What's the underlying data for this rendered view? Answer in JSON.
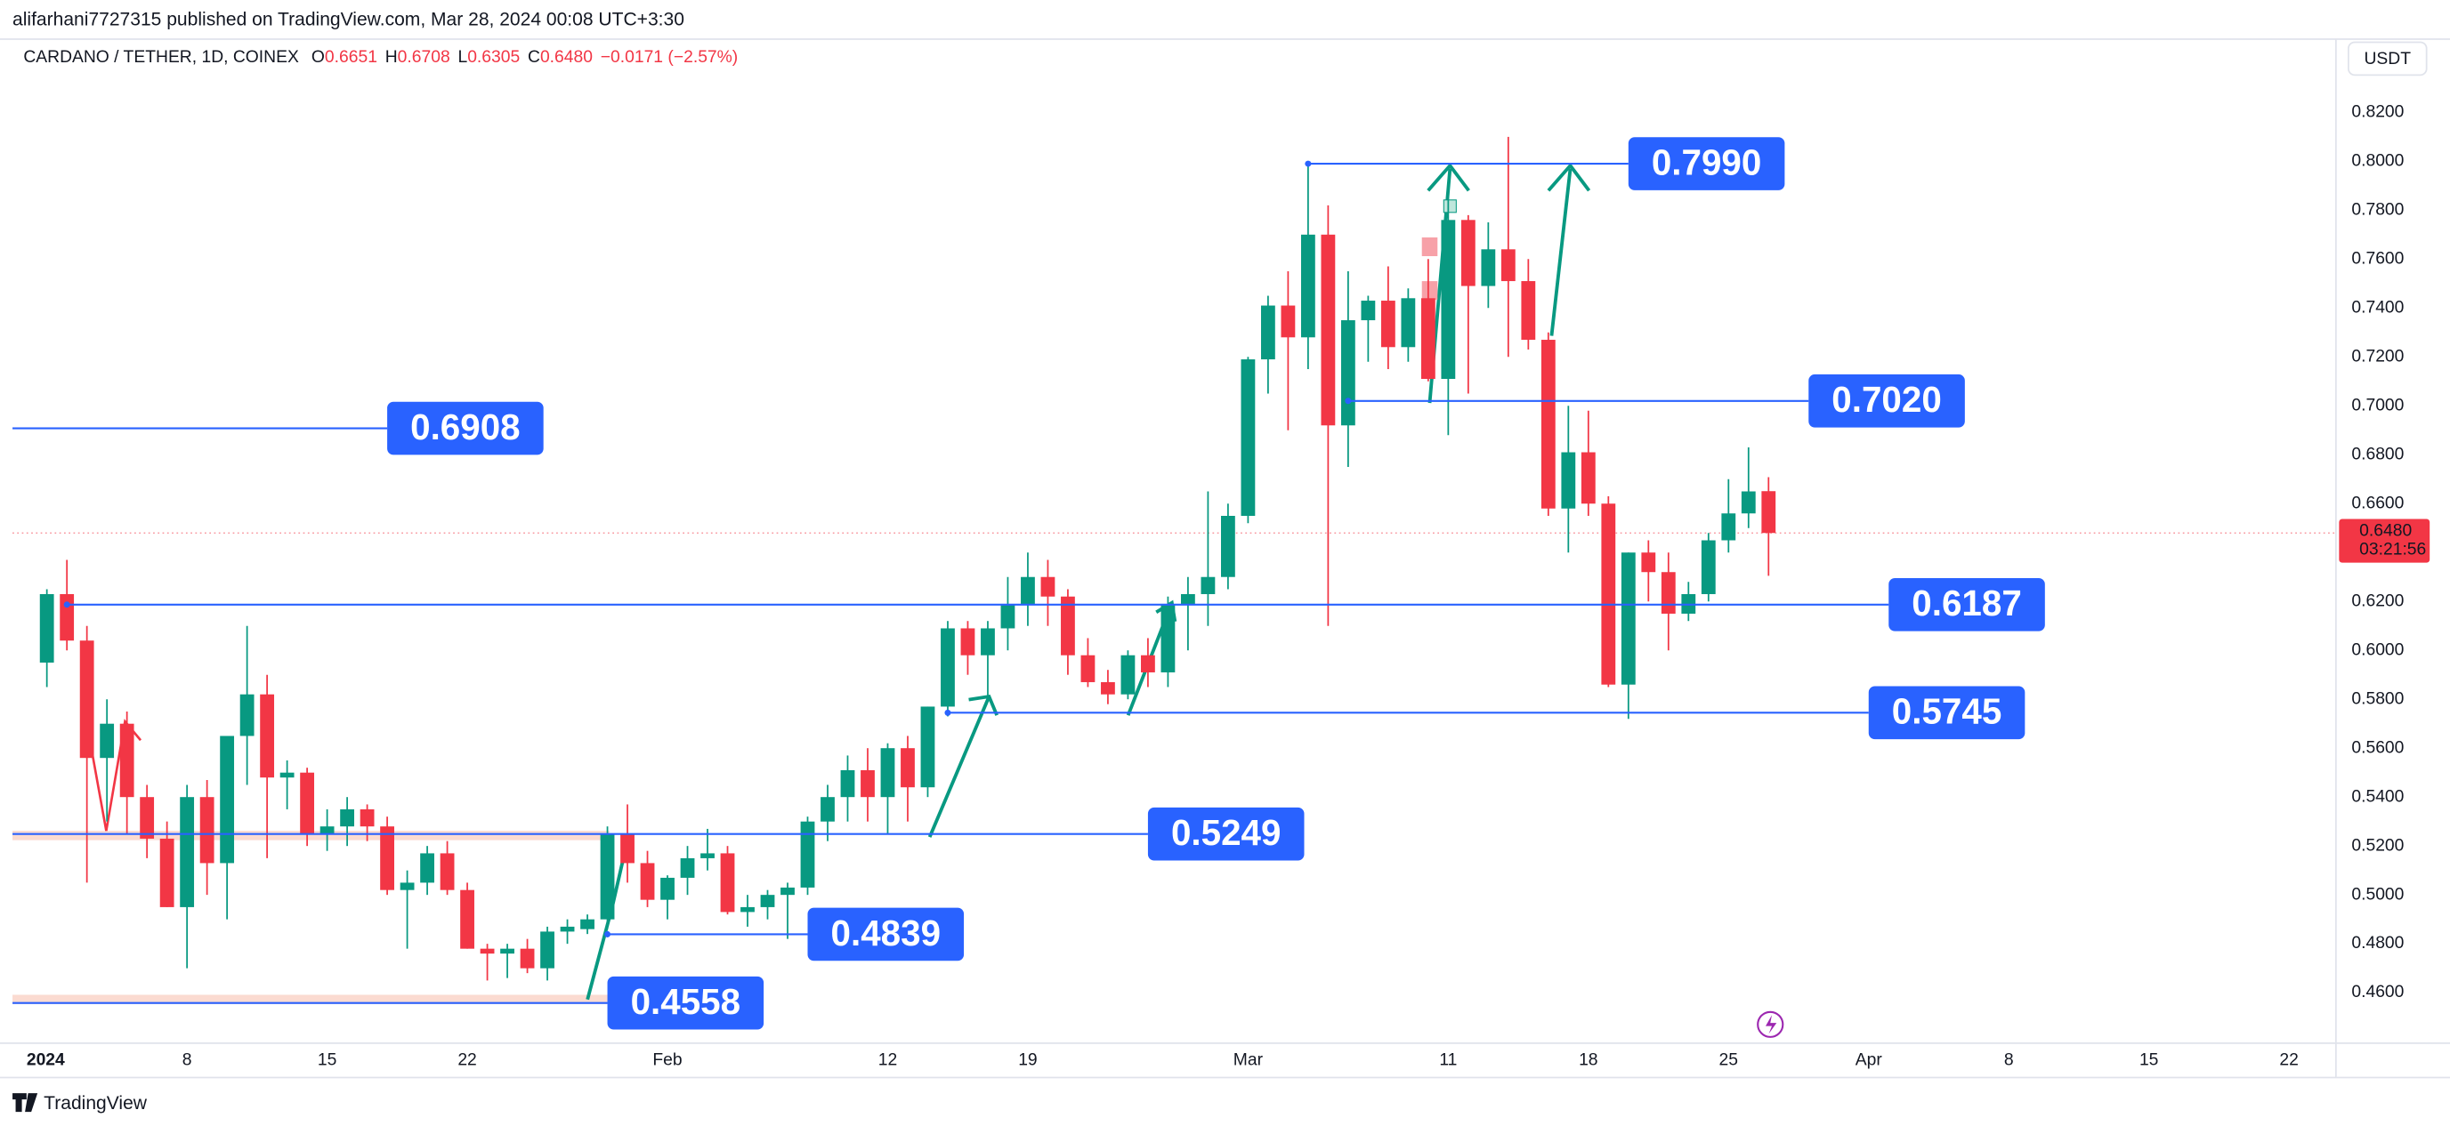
{
  "chart_data": {
    "type": "candlestick",
    "header": "alifarhani7727315 published on TradingView.com, Mar 28, 2024 00:08 UTC+3:30",
    "title": "CARDANO / TETHER, 1D, COINEX",
    "ohlc_legend": [
      {
        "key": "O",
        "value": "0.6651"
      },
      {
        "key": "H",
        "value": "0.6708"
      },
      {
        "key": "L",
        "value": "0.6305"
      },
      {
        "key": "C",
        "value": "0.6480"
      }
    ],
    "change": "−0.0171 (−2.57%)",
    "currency": "USDT",
    "brand": "TradingView",
    "up_color": "#089981",
    "down_color": "#f23645",
    "level_color": "#2962ff",
    "x": [
      "2024-01-01",
      "2024-01-02",
      "2024-01-03",
      "2024-01-04",
      "2024-01-05",
      "2024-01-06",
      "2024-01-07",
      "2024-01-08",
      "2024-01-09",
      "2024-01-10",
      "2024-01-11",
      "2024-01-12",
      "2024-01-13",
      "2024-01-14",
      "2024-01-15",
      "2024-01-16",
      "2024-01-17",
      "2024-01-18",
      "2024-01-19",
      "2024-01-20",
      "2024-01-21",
      "2024-01-22",
      "2024-01-23",
      "2024-01-24",
      "2024-01-25",
      "2024-01-26",
      "2024-01-27",
      "2024-01-28",
      "2024-01-29",
      "2024-01-30",
      "2024-01-31",
      "2024-02-01",
      "2024-02-02",
      "2024-02-03",
      "2024-02-04",
      "2024-02-05",
      "2024-02-06",
      "2024-02-07",
      "2024-02-08",
      "2024-02-09",
      "2024-02-10",
      "2024-02-11",
      "2024-02-12",
      "2024-02-13",
      "2024-02-14",
      "2024-02-15",
      "2024-02-16",
      "2024-02-17",
      "2024-02-18",
      "2024-02-19",
      "2024-02-20",
      "2024-02-21",
      "2024-02-22",
      "2024-02-23",
      "2024-02-24",
      "2024-02-25",
      "2024-02-26",
      "2024-02-27",
      "2024-02-28",
      "2024-02-29",
      "2024-03-01",
      "2024-03-02",
      "2024-03-03",
      "2024-03-04",
      "2024-03-05",
      "2024-03-06",
      "2024-03-07",
      "2024-03-08",
      "2024-03-09",
      "2024-03-10",
      "2024-03-11",
      "2024-03-12",
      "2024-03-13",
      "2024-03-14",
      "2024-03-15",
      "2024-03-16",
      "2024-03-17",
      "2024-03-18",
      "2024-03-19",
      "2024-03-20",
      "2024-03-21",
      "2024-03-22",
      "2024-03-23",
      "2024-03-24",
      "2024-03-25",
      "2024-03-26",
      "2024-03-27"
    ],
    "open": [
      0.595,
      0.623,
      0.604,
      0.556,
      0.57,
      0.54,
      0.523,
      0.495,
      0.54,
      0.513,
      0.565,
      0.582,
      0.548,
      0.55,
      0.525,
      0.528,
      0.535,
      0.528,
      0.502,
      0.505,
      0.517,
      0.502,
      0.478,
      0.476,
      0.478,
      0.47,
      0.485,
      0.486,
      0.49,
      0.525,
      0.513,
      0.498,
      0.507,
      0.515,
      0.517,
      0.493,
      0.495,
      0.5,
      0.503,
      0.53,
      0.54,
      0.551,
      0.54,
      0.56,
      0.544,
      0.577,
      0.609,
      0.598,
      0.609,
      0.619,
      0.63,
      0.622,
      0.598,
      0.587,
      0.582,
      0.598,
      0.591,
      0.619,
      0.623,
      0.63,
      0.655,
      0.719,
      0.741,
      0.728,
      0.77,
      0.692,
      0.735,
      0.743,
      0.724,
      0.744,
      0.711,
      0.776,
      0.749,
      0.764,
      0.751,
      0.727,
      0.658,
      0.681,
      0.66,
      0.586,
      0.64,
      0.632,
      0.615,
      0.623,
      0.645,
      0.656,
      0.6651
    ],
    "high": [
      0.625,
      0.637,
      0.61,
      0.58,
      0.575,
      0.545,
      0.53,
      0.545,
      0.547,
      0.565,
      0.61,
      0.59,
      0.555,
      0.552,
      0.535,
      0.54,
      0.537,
      0.532,
      0.51,
      0.52,
      0.522,
      0.505,
      0.48,
      0.48,
      0.482,
      0.487,
      0.49,
      0.492,
      0.528,
      0.537,
      0.518,
      0.508,
      0.52,
      0.527,
      0.52,
      0.5,
      0.502,
      0.505,
      0.532,
      0.545,
      0.557,
      0.56,
      0.562,
      0.565,
      0.577,
      0.612,
      0.612,
      0.612,
      0.63,
      0.64,
      0.637,
      0.625,
      0.605,
      0.592,
      0.6,
      0.605,
      0.622,
      0.63,
      0.665,
      0.66,
      0.72,
      0.745,
      0.755,
      0.8,
      0.782,
      0.755,
      0.745,
      0.757,
      0.748,
      0.76,
      0.79,
      0.778,
      0.775,
      0.81,
      0.76,
      0.73,
      0.7,
      0.698,
      0.663,
      0.64,
      0.645,
      0.64,
      0.628,
      0.648,
      0.67,
      0.683,
      0.6708
    ],
    "low": [
      0.585,
      0.6,
      0.505,
      0.53,
      0.525,
      0.515,
      0.495,
      0.47,
      0.5,
      0.49,
      0.545,
      0.515,
      0.535,
      0.52,
      0.518,
      0.52,
      0.522,
      0.5,
      0.478,
      0.5,
      0.5,
      0.478,
      0.465,
      0.466,
      0.468,
      0.465,
      0.48,
      0.484,
      0.486,
      0.505,
      0.495,
      0.49,
      0.5,
      0.51,
      0.492,
      0.487,
      0.49,
      0.482,
      0.5,
      0.522,
      0.53,
      0.53,
      0.525,
      0.53,
      0.54,
      0.573,
      0.59,
      0.58,
      0.6,
      0.61,
      0.61,
      0.59,
      0.585,
      0.578,
      0.58,
      0.585,
      0.585,
      0.6,
      0.61,
      0.625,
      0.652,
      0.705,
      0.69,
      0.715,
      0.61,
      0.675,
      0.718,
      0.715,
      0.718,
      0.71,
      0.688,
      0.705,
      0.74,
      0.72,
      0.723,
      0.655,
      0.64,
      0.655,
      0.585,
      0.572,
      0.62,
      0.6,
      0.612,
      0.62,
      0.64,
      0.65,
      0.6305
    ],
    "close": [
      0.623,
      0.604,
      0.556,
      0.57,
      0.54,
      0.523,
      0.495,
      0.54,
      0.513,
      0.565,
      0.582,
      0.548,
      0.55,
      0.525,
      0.528,
      0.535,
      0.528,
      0.502,
      0.505,
      0.517,
      0.502,
      0.478,
      0.476,
      0.478,
      0.47,
      0.485,
      0.487,
      0.49,
      0.525,
      0.513,
      0.498,
      0.507,
      0.515,
      0.517,
      0.493,
      0.495,
      0.5,
      0.503,
      0.53,
      0.54,
      0.551,
      0.54,
      0.56,
      0.544,
      0.577,
      0.609,
      0.598,
      0.609,
      0.619,
      0.63,
      0.622,
      0.598,
      0.587,
      0.582,
      0.598,
      0.591,
      0.619,
      0.623,
      0.63,
      0.655,
      0.719,
      0.741,
      0.728,
      0.77,
      0.692,
      0.735,
      0.743,
      0.724,
      0.744,
      0.711,
      0.776,
      0.749,
      0.764,
      0.751,
      0.727,
      0.658,
      0.681,
      0.66,
      0.586,
      0.64,
      0.632,
      0.615,
      0.623,
      0.645,
      0.656,
      0.665,
      0.648
    ],
    "ylim": [
      0.44,
      0.834
    ],
    "yticks": [
      {
        "value": 0.46,
        "label": "0.4600"
      },
      {
        "value": 0.48,
        "label": "0.4800"
      },
      {
        "value": 0.5,
        "label": "0.5000"
      },
      {
        "value": 0.52,
        "label": "0.5200"
      },
      {
        "value": 0.54,
        "label": "0.5400"
      },
      {
        "value": 0.56,
        "label": "0.5600"
      },
      {
        "value": 0.58,
        "label": "0.5800"
      },
      {
        "value": 0.6,
        "label": "0.6000"
      },
      {
        "value": 0.62,
        "label": "0.6200"
      },
      {
        "value": 0.64,
        "label": "0.6400"
      },
      {
        "value": 0.66,
        "label": "0.6600"
      },
      {
        "value": 0.68,
        "label": "0.6800"
      },
      {
        "value": 0.7,
        "label": "0.7000"
      },
      {
        "value": 0.72,
        "label": "0.7200"
      },
      {
        "value": 0.74,
        "label": "0.7400"
      },
      {
        "value": 0.76,
        "label": "0.7600"
      },
      {
        "value": 0.78,
        "label": "0.7800"
      },
      {
        "value": 0.8,
        "label": "0.8000"
      },
      {
        "value": 0.82,
        "label": "0.8200"
      }
    ],
    "xticks": [
      {
        "value": "2024-01-01",
        "label": "2024"
      },
      {
        "value": "2024-01-08",
        "label": "8"
      },
      {
        "value": "2024-01-15",
        "label": "15"
      },
      {
        "value": "2024-01-22",
        "label": "22"
      },
      {
        "value": "2024-02-01",
        "label": "Feb"
      },
      {
        "value": "2024-02-12",
        "label": "12"
      },
      {
        "value": "2024-02-19",
        "label": "19"
      },
      {
        "value": "2024-03-01",
        "label": "Mar"
      },
      {
        "value": "2024-03-11",
        "label": "11"
      },
      {
        "value": "2024-03-18",
        "label": "18"
      },
      {
        "value": "2024-03-25",
        "label": "25"
      },
      {
        "value": "2024-04-01",
        "label": "Apr"
      },
      {
        "value": "2024-04-08",
        "label": "8"
      },
      {
        "value": "2024-04-15",
        "label": "15"
      },
      {
        "value": "2024-04-22",
        "label": "22"
      }
    ],
    "levels": [
      {
        "value": 0.6908,
        "label": "0.6908",
        "to": "2024-01-18"
      },
      {
        "value": 0.799,
        "label": "0.7990",
        "from": "2024-03-04",
        "to": "2024-03-20"
      },
      {
        "value": 0.702,
        "label": "0.7020",
        "from": "2024-03-06",
        "to": "2024-03-29"
      },
      {
        "value": 0.6187,
        "label": "0.6187",
        "from": "2024-01-02",
        "to": "2024-04-02"
      },
      {
        "value": 0.5745,
        "label": "0.5745",
        "from": "2024-02-15",
        "to": "2024-04-01"
      },
      {
        "value": 0.5249,
        "label": "0.5249",
        "to": "2024-02-25"
      },
      {
        "value": 0.4839,
        "label": "0.4839",
        "from": "2024-01-29",
        "to": "2024-02-08"
      },
      {
        "value": 0.4558,
        "label": "0.4558",
        "to": "2024-01-29"
      }
    ],
    "last_price": {
      "value": 0.648,
      "label": "0.6480"
    },
    "countdown": "03:21:56"
  }
}
